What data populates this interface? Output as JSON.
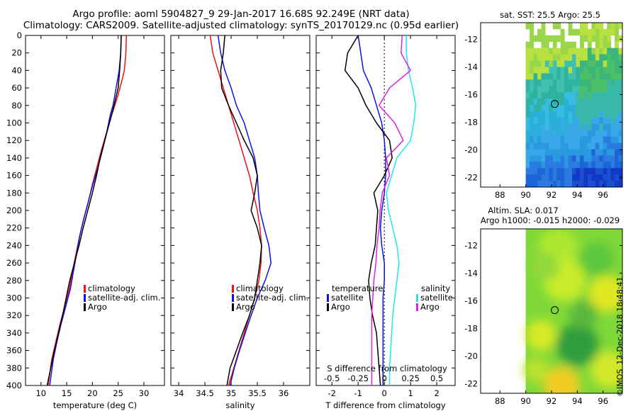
{
  "header": {
    "line1": "Argo profile: aoml 5904827_9 29-Jan-2017 16.68S 92.249E (NRT data)",
    "line2": "Climatology: CARS2009. Satellite-adjusted climatology: synTS_20170129.nc (0.95d earlier)"
  },
  "footer": {
    "org": "©IMOS",
    "timestamp": "12-Dec-2018 18:48:41"
  },
  "colors": {
    "red": "#ee1111",
    "blue": "#1111dd",
    "black": "#000000",
    "cyan": "#22e5ee",
    "magenta": "#dd22dd"
  },
  "chart_data": [
    {
      "type": "line",
      "id": "temperature",
      "xlabel": "temperature (deg C)",
      "xlim": [
        7,
        34
      ],
      "xticks": [
        10,
        15,
        20,
        25,
        30
      ],
      "ylim": [
        0,
        400
      ],
      "yticks": [
        0,
        20,
        40,
        60,
        80,
        100,
        120,
        140,
        160,
        180,
        200,
        220,
        240,
        260,
        280,
        300,
        320,
        340,
        360,
        380,
        400
      ],
      "legend": [
        "climatology",
        "satellite-adj. clim.",
        "Argo"
      ],
      "series": [
        {
          "name": "climatology",
          "color": "red",
          "x": [
            26.6,
            26.5,
            26.2,
            25.8,
            24.9,
            23.8,
            22.8,
            21.8,
            20.9,
            20.0,
            19.2,
            18.3,
            17.5,
            16.8,
            16.1,
            15.5,
            14.6,
            13.7,
            12.9,
            12.1,
            11.4
          ],
          "y": [
            0,
            20,
            40,
            50,
            70,
            90,
            110,
            130,
            150,
            170,
            190,
            210,
            230,
            250,
            270,
            290,
            310,
            330,
            350,
            370,
            400
          ]
        },
        {
          "name": "satellite-adj. clim.",
          "color": "blue",
          "x": [
            25.6,
            25.5,
            25.2,
            24.6,
            24.0,
            23.5,
            22.8,
            22.0,
            21.1,
            20.1,
            19.2,
            18.3,
            17.5,
            16.9,
            16.3,
            15.7,
            14.8,
            13.9,
            13.1,
            12.4,
            11.7
          ],
          "y": [
            0,
            20,
            40,
            60,
            80,
            90,
            110,
            130,
            150,
            170,
            190,
            210,
            230,
            250,
            270,
            290,
            310,
            330,
            350,
            370,
            400
          ]
        },
        {
          "name": "Argo",
          "color": "black",
          "x": [
            25.6,
            25.5,
            25.3,
            25.0,
            24.2,
            23.3,
            22.4,
            21.5,
            20.8,
            20.0,
            19.1,
            18.2,
            17.4,
            16.5,
            15.6,
            14.9,
            14.2,
            13.4,
            12.6,
            11.9,
            11.2
          ],
          "y": [
            0,
            20,
            40,
            60,
            80,
            100,
            120,
            140,
            160,
            180,
            200,
            220,
            240,
            260,
            280,
            300,
            320,
            340,
            360,
            380,
            400
          ]
        }
      ]
    },
    {
      "type": "line",
      "id": "salinity",
      "xlabel": "salinity",
      "xlim": [
        33.85,
        36.5
      ],
      "xticks": [
        34,
        34.5,
        35,
        35.5,
        36
      ],
      "xticklabels": [
        "34",
        "34.5",
        "35",
        "35.5",
        "36"
      ],
      "ylim": [
        0,
        400
      ],
      "legend": [
        "climatology",
        "satellite-adj. clim.",
        "Argo"
      ],
      "series": [
        {
          "name": "climatology",
          "color": "red",
          "x": [
            34.6,
            34.65,
            34.75,
            34.85,
            34.95,
            35.05,
            35.15,
            35.25,
            35.35,
            35.42,
            35.5,
            35.55,
            35.58,
            35.57,
            35.53,
            35.45,
            35.35,
            35.25,
            35.15,
            35.05,
            34.95
          ],
          "y": [
            0,
            20,
            40,
            60,
            80,
            100,
            120,
            140,
            160,
            180,
            200,
            220,
            240,
            260,
            280,
            300,
            320,
            340,
            360,
            380,
            400
          ]
        },
        {
          "name": "satellite-adj. clim.",
          "color": "blue",
          "x": [
            34.75,
            34.8,
            34.88,
            35.0,
            35.1,
            35.25,
            35.35,
            35.45,
            35.5,
            35.52,
            35.55,
            35.63,
            35.72,
            35.76,
            35.65,
            35.5,
            35.38,
            35.27,
            35.16,
            35.06,
            34.98
          ],
          "y": [
            0,
            20,
            40,
            60,
            80,
            100,
            120,
            140,
            160,
            180,
            200,
            220,
            240,
            260,
            280,
            300,
            320,
            340,
            360,
            380,
            400
          ]
        },
        {
          "name": "Argo",
          "color": "black",
          "x": [
            34.88,
            34.85,
            34.8,
            34.82,
            34.95,
            35.1,
            35.25,
            35.42,
            35.5,
            35.45,
            35.38,
            35.5,
            35.58,
            35.55,
            35.5,
            35.45,
            35.35,
            35.22,
            35.1,
            34.98,
            34.92
          ],
          "y": [
            0,
            20,
            40,
            60,
            80,
            100,
            120,
            140,
            160,
            180,
            200,
            220,
            240,
            260,
            280,
            300,
            320,
            340,
            360,
            380,
            400
          ]
        }
      ]
    },
    {
      "type": "line",
      "id": "difference",
      "xlabel": "T difference from climatology",
      "xlabel_top": "S difference from climatology",
      "xlim": [
        -2.6,
        2.7
      ],
      "xticks": [
        -2,
        -1,
        0,
        1,
        2
      ],
      "xticks_top": [
        -0.5,
        -0.25,
        0,
        0.25,
        0.5
      ],
      "xticklabels_top": [
        "-0.5",
        "-0.25",
        "0",
        "0.25",
        "0.5"
      ],
      "top_scale": 4,
      "ylim": [
        0,
        400
      ],
      "legend_left_title": "temperature",
      "legend_right_title": "salinity",
      "legend": [
        "satellite",
        "Argo",
        "satellite",
        "Argo"
      ],
      "series": [
        {
          "name": "T satellite",
          "color": "blue",
          "x": [
            -1.0,
            -0.9,
            -0.8,
            -0.5,
            -0.3,
            -0.1,
            0.0,
            0.05,
            0.05,
            0.0,
            -0.1,
            -0.15,
            -0.1,
            0.0,
            0.0,
            -0.05,
            -0.05,
            -0.05,
            -0.05,
            -0.05,
            -0.05
          ],
          "y": [
            0,
            20,
            40,
            60,
            80,
            100,
            120,
            140,
            160,
            180,
            200,
            220,
            240,
            260,
            280,
            300,
            320,
            340,
            360,
            380,
            400
          ]
        },
        {
          "name": "T Argo",
          "color": "black",
          "x": [
            -1.0,
            -1.4,
            -1.5,
            -1.0,
            -0.7,
            -0.3,
            0.2,
            0.3,
            0.0,
            -0.4,
            -0.25,
            -0.3,
            -0.35,
            -0.5,
            -0.6,
            -0.55,
            -0.45,
            -0.3,
            -0.25,
            -0.2,
            -0.15
          ],
          "y": [
            0,
            20,
            40,
            60,
            80,
            100,
            120,
            140,
            160,
            180,
            200,
            220,
            240,
            260,
            280,
            300,
            320,
            340,
            360,
            380,
            400
          ]
        },
        {
          "name": "S satellite",
          "color": "cyan",
          "x": [
            0.21,
            0.21,
            0.23,
            0.27,
            0.3,
            0.28,
            0.25,
            0.12,
            0.07,
            0.02,
            0.04,
            0.08,
            0.12,
            0.14,
            0.12,
            0.1,
            0.08,
            0.07,
            0.06,
            0.05,
            0.05
          ],
          "y": [
            0,
            20,
            40,
            60,
            80,
            100,
            120,
            140,
            160,
            180,
            200,
            220,
            240,
            260,
            280,
            300,
            320,
            340,
            360,
            380,
            400
          ]
        },
        {
          "name": "S Argo",
          "color": "magenta",
          "x": [
            0.17,
            0.16,
            0.25,
            0.05,
            -0.05,
            0.1,
            0.18,
            0.02,
            0.05,
            -0.02,
            -0.04,
            -0.05,
            -0.07,
            -0.08,
            -0.1,
            -0.11,
            -0.12,
            -0.12,
            -0.12,
            -0.12,
            -0.12
          ],
          "y": [
            0,
            20,
            40,
            60,
            80,
            100,
            120,
            140,
            160,
            180,
            200,
            220,
            240,
            260,
            280,
            300,
            320,
            340,
            360,
            380,
            400
          ]
        }
      ]
    },
    {
      "type": "heatmap",
      "id": "sst-map",
      "title": "sat. SST: 25.5 Argo: 25.5",
      "xlim": [
        86.5,
        97.5
      ],
      "ylim": [
        -22.7,
        -10.8
      ],
      "xticks": [
        88,
        90,
        92,
        94,
        96
      ],
      "yticks": [
        -12,
        -14,
        -16,
        -18,
        -20,
        -22
      ],
      "no_data_west_of": 90,
      "argo_marker": {
        "lon": 92.25,
        "lat": -16.68
      }
    },
    {
      "type": "heatmap",
      "id": "sla-map",
      "title": "Altim. SLA: 0.017",
      "subtitle": "Argo h1000: -0.015 h2000: -0.029",
      "xlim": [
        86.5,
        97.5
      ],
      "ylim": [
        -22.7,
        -10.8
      ],
      "xticks": [
        88,
        90,
        92,
        94,
        96
      ],
      "yticks": [
        -12,
        -14,
        -16,
        -18,
        -20,
        -22
      ],
      "no_data_west_of": 90,
      "argo_marker": {
        "lon": 92.25,
        "lat": -16.68
      }
    }
  ]
}
